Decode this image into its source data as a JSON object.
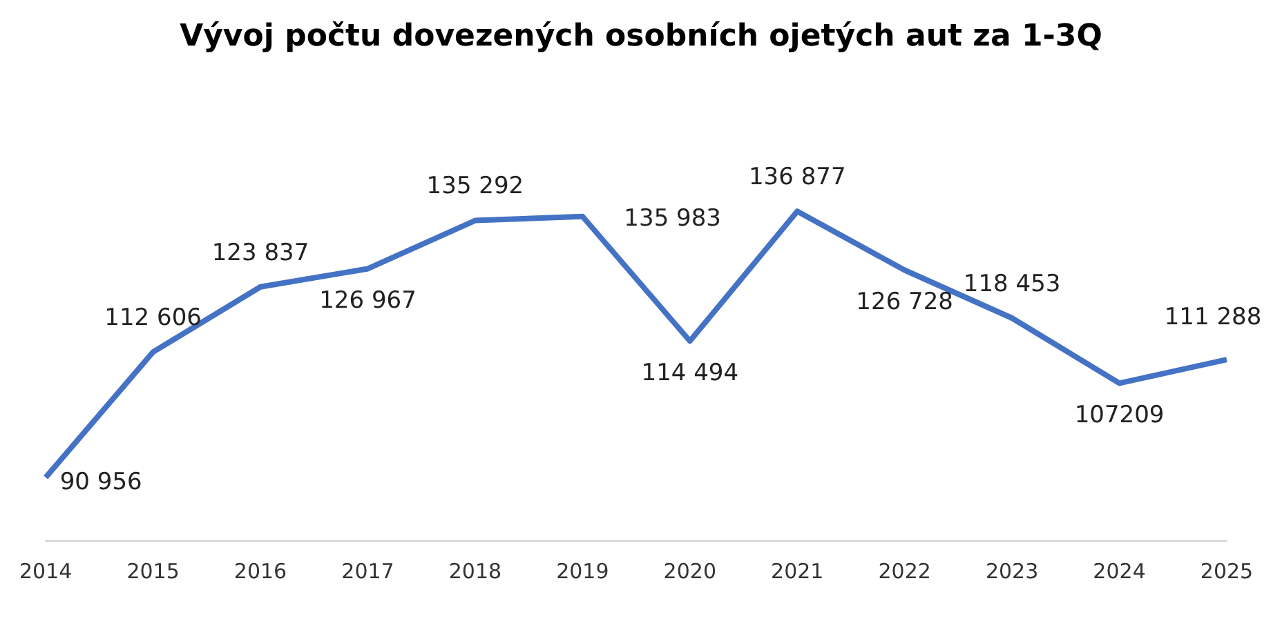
{
  "chart_data": {
    "type": "line",
    "title": "Vývoj počtu dovezených osobních ojetých aut za 1-3Q",
    "categories": [
      "2014",
      "2015",
      "2016",
      "2017",
      "2018",
      "2019",
      "2020",
      "2021",
      "2022",
      "2023",
      "2024",
      "2025"
    ],
    "series": [
      {
        "color": "#4472c4",
        "values": [
          90956,
          112606,
          123837,
          126967,
          135292,
          135983,
          114494,
          136877,
          126728,
          118453,
          107209,
          111288
        ],
        "value_labels": [
          "90 956",
          "112 606",
          "123 837",
          "126 967",
          "135 292",
          "135 983",
          "114 494",
          "136 877",
          "126 728",
          "118 453",
          "107209",
          "111 288"
        ]
      }
    ],
    "tick_labels": "x",
    "grid": false,
    "legend": false,
    "marker": "none",
    "line_style": "solid"
  }
}
